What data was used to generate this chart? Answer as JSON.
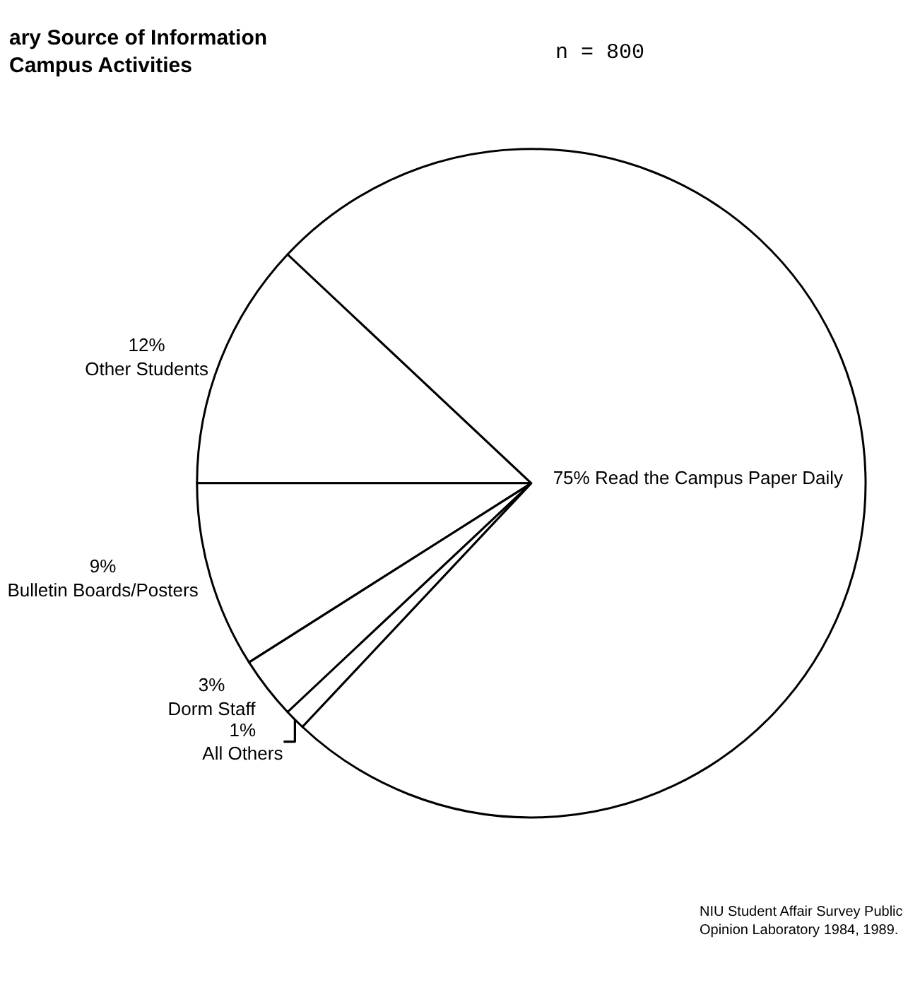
{
  "chart_data": {
    "type": "pie",
    "title": "ary Source of Information\nCampus Activities",
    "categories": [
      "Other Students",
      "Bulletin Boards/Posters",
      "Dorm Staff",
      "All Others",
      "Read the Campus Paper Daily"
    ],
    "values": [
      12,
      9,
      3,
      1,
      75
    ],
    "value_labels": [
      "12%",
      "9%",
      "3%",
      "1%",
      "75%"
    ],
    "colors": [
      "#ffffff",
      "#ffffff",
      "#ffffff",
      "#ffffff",
      "#ffffff"
    ],
    "legend": false,
    "annotations": [
      "n = 800",
      "NIU Student Affair Survey Public\nOpinion Laboratory 1984, 1989."
    ]
  }
}
